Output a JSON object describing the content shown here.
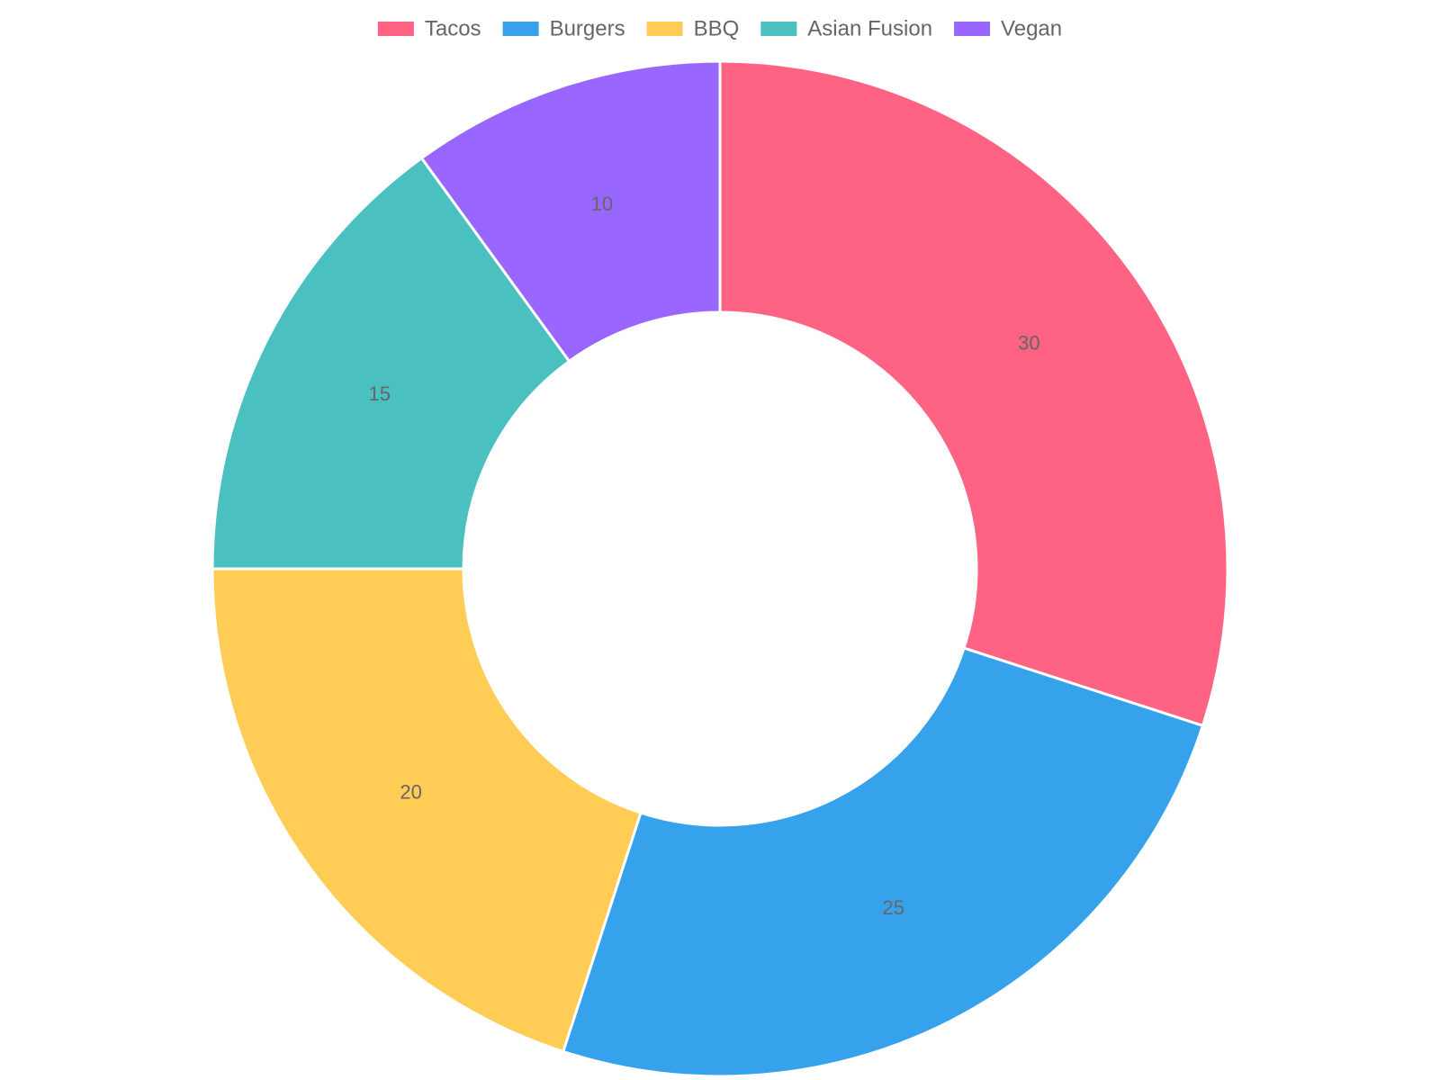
{
  "chart_data": {
    "type": "doughnut",
    "categories": [
      "Tacos",
      "Burgers",
      "BBQ",
      "Asian Fusion",
      "Vegan"
    ],
    "values": [
      30,
      25,
      20,
      15,
      10
    ],
    "colors": [
      "#ff6384",
      "#36a2eb",
      "#ffcd56",
      "#4bc0c0",
      "#9966ff"
    ],
    "legend": "top"
  }
}
